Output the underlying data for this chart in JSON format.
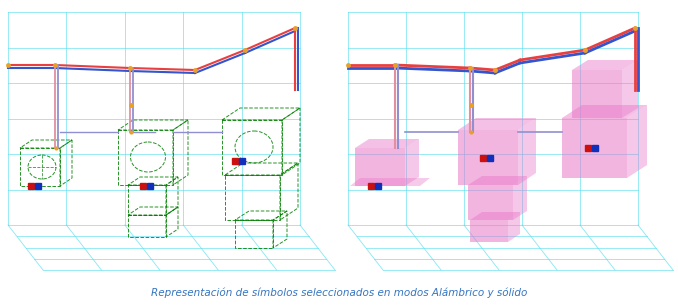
{
  "title": "Representación de símbolos seleccionados en modos Alámbrico y sólido",
  "title_color": "#3575c0",
  "title_fontsize": 7.5,
  "background_color": "#ffffff",
  "fig_width": 6.78,
  "fig_height": 3.08,
  "grid_color": "#55ddee",
  "grid_alpha": 0.7,
  "pipe_red_color": "#e84040",
  "pipe_blue_color": "#3555cc",
  "pipe_pink_color": "#e090a0",
  "pipe_lavender_color": "#9090d0",
  "node_color": "#e8a028",
  "wireframe_color": "#008000",
  "solid_color": "#e878c8",
  "solid_alpha": 0.55,
  "marker_red": "#cc1010",
  "marker_blue": "#1030bb",
  "marker_size": 6
}
